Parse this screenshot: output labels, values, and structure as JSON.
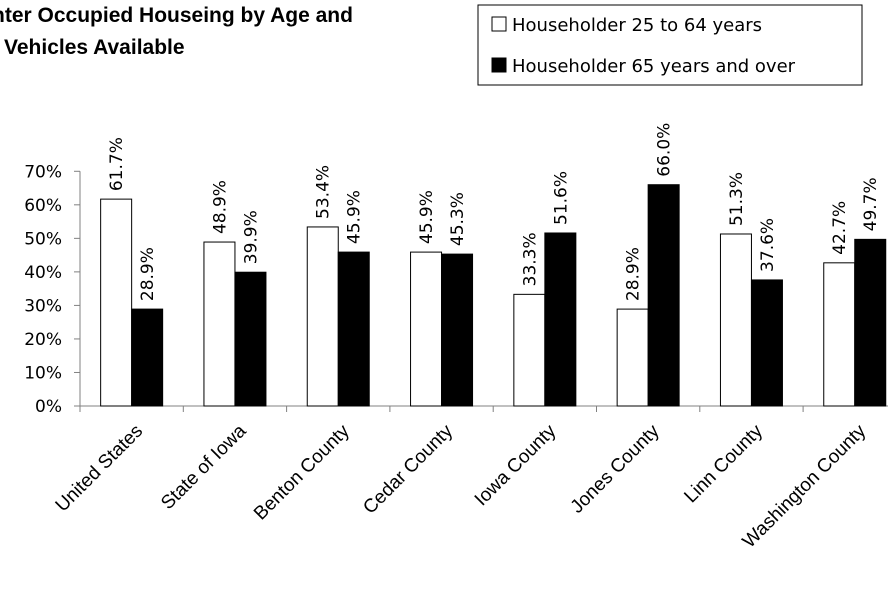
{
  "chart_data": {
    "type": "bar",
    "title_lines": [
      "nter Occupied Houseing by Age and",
      "Vehicles Available"
    ],
    "categories": [
      "United States",
      "State of Iowa",
      "Benton County",
      "Cedar County",
      "Iowa County",
      "Jones County",
      "Linn County",
      "Washington County"
    ],
    "series": [
      {
        "name": "Householder 25 to 64 years",
        "color": "#ffffff",
        "values": [
          61.7,
          48.9,
          53.4,
          45.9,
          33.3,
          28.9,
          51.3,
          42.7
        ],
        "labels": [
          "61.7%",
          "48.9%",
          "53.4%",
          "45.9%",
          "33.3%",
          "28.9%",
          "51.3%",
          "42.7%"
        ]
      },
      {
        "name": "Householder 65 years and over",
        "color": "#000000",
        "values": [
          28.9,
          39.9,
          45.9,
          45.3,
          51.6,
          66.0,
          37.6,
          49.7
        ],
        "labels": [
          "28.9%",
          "39.9%",
          "45.9%",
          "45.3%",
          "51.6%",
          "66.0%",
          "37.6%",
          "49.7%"
        ]
      }
    ],
    "yticks": [
      "0%",
      "10%",
      "20%",
      "30%",
      "40%",
      "50%",
      "60%",
      "70%"
    ],
    "ylim": [
      0,
      70
    ],
    "grid": false,
    "legend_position": "top-right"
  }
}
